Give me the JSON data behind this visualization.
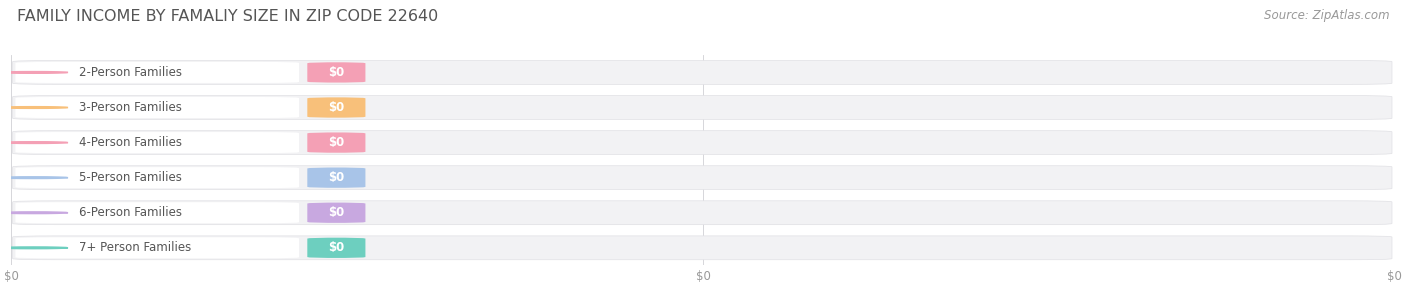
{
  "title": "FAMILY INCOME BY FAMALIY SIZE IN ZIP CODE 22640",
  "source": "Source: ZipAtlas.com",
  "categories": [
    "2-Person Families",
    "3-Person Families",
    "4-Person Families",
    "5-Person Families",
    "6-Person Families",
    "7+ Person Families"
  ],
  "values": [
    0,
    0,
    0,
    0,
    0,
    0
  ],
  "bar_colors": [
    "#f4a0b5",
    "#f8c07a",
    "#f4a0b5",
    "#a8c4e8",
    "#c8a8e0",
    "#6dcfbf"
  ],
  "value_labels": [
    "$0",
    "$0",
    "$0",
    "$0",
    "$0",
    "$0"
  ],
  "background_color": "#ffffff",
  "bar_bg_color": "#f2f2f4",
  "title_fontsize": 11.5,
  "source_fontsize": 8.5,
  "label_fontsize": 8.5,
  "tick_fontsize": 8.5,
  "xtick_labels": [
    "$0",
    "$0",
    "$0"
  ],
  "xtick_positions": [
    0.0,
    0.5,
    1.0
  ]
}
